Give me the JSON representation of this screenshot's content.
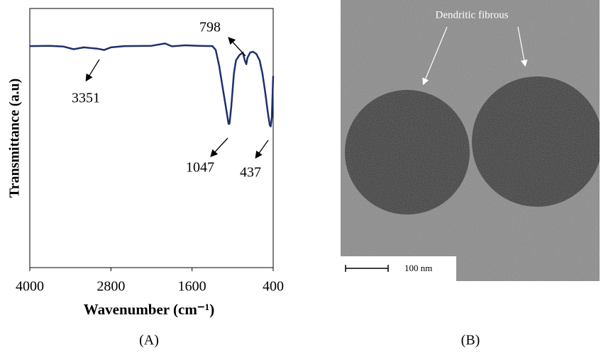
{
  "chart_data": {
    "type": "line",
    "panel_label": "(A)",
    "y_label": "Transmittance (a.u)",
    "x_label": "Wavenumber (cm⁻¹)",
    "x": [
      4000,
      3700,
      3500,
      3351,
      3200,
      3000,
      2900,
      2800,
      2600,
      2200,
      2000,
      1900,
      1700,
      1500,
      1300,
      1250,
      1200,
      1150,
      1100,
      1060,
      1047,
      1020,
      980,
      950,
      900,
      850,
      820,
      798,
      780,
      740,
      700,
      650,
      600,
      560,
      520,
      480,
      450,
      437,
      420,
      405,
      400
    ],
    "values": [
      85.5,
      85.6,
      85.3,
      84.3,
      85.0,
      84.5,
      84.0,
      85.0,
      85.5,
      85.6,
      86.5,
      85.4,
      85.8,
      85.6,
      85.5,
      84,
      78,
      70,
      62,
      55.5,
      55.5,
      62,
      75,
      80,
      82,
      83,
      80,
      78.5,
      81,
      83,
      83.3,
      82.5,
      80,
      75,
      68,
      60,
      55,
      54.5,
      58,
      70,
      74
    ],
    "color": "#1f2f6b",
    "xlim": [
      4000,
      400
    ],
    "xticks": [
      4000,
      2800,
      1600,
      400
    ],
    "ylim": [
      0,
      100
    ],
    "annotations": [
      "3351",
      "1047",
      "798",
      "437"
    ]
  },
  "image_panel": {
    "label": "(B)",
    "annotation": "Dendritic fibrous",
    "scale_bar": "100 nm"
  }
}
